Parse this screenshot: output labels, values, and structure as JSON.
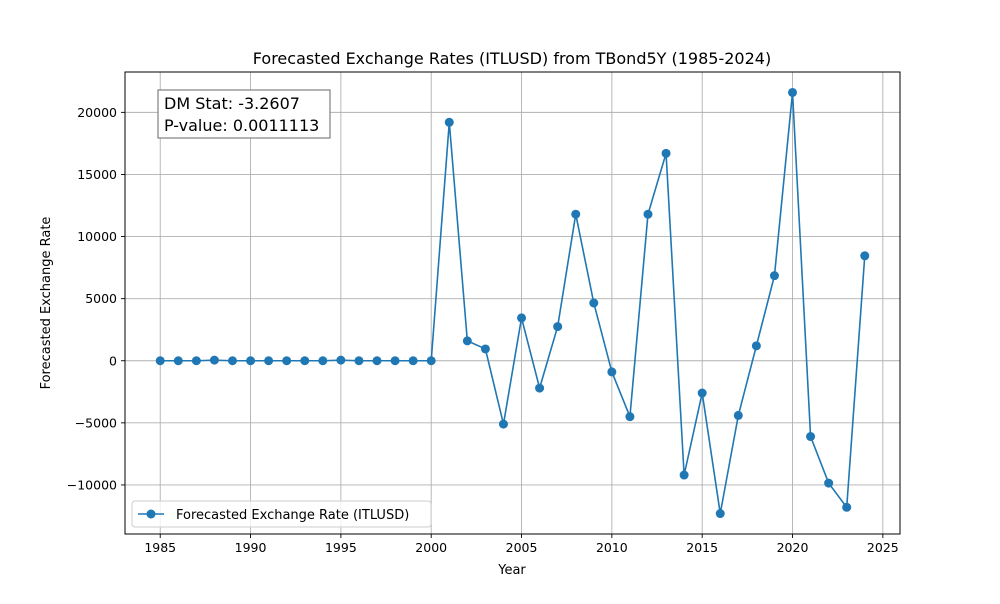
{
  "chart_data": {
    "type": "line",
    "title": "Forecasted Exchange Rates (ITLUSD) from TBond5Y (1985-2024)",
    "xlabel": "Year",
    "ylabel": "Forecasted Exchange Rate",
    "xlim": [
      1983.05,
      2025.95
    ],
    "ylim": [
      -13950,
      23250
    ],
    "x_ticks": [
      1985,
      1990,
      1995,
      2000,
      2005,
      2010,
      2015,
      2020,
      2025
    ],
    "y_ticks": [
      -10000,
      -5000,
      0,
      5000,
      10000,
      15000,
      20000
    ],
    "y_tick_labels": [
      "−10000",
      "−5000",
      "0",
      "5000",
      "10000",
      "15000",
      "20000"
    ],
    "grid": true,
    "legend_position": "lower-left",
    "annotation": [
      "DM Stat: -3.2607",
      "P-value: 0.0011113"
    ],
    "series": [
      {
        "name": "Forecasted Exchange Rate (ITLUSD)",
        "color": "#1f77b4",
        "marker": "circle",
        "x": [
          1985,
          1986,
          1987,
          1988,
          1989,
          1990,
          1991,
          1992,
          1993,
          1994,
          1995,
          1996,
          1997,
          1998,
          1999,
          2000,
          2001,
          2002,
          2003,
          2004,
          2005,
          2006,
          2007,
          2008,
          2009,
          2010,
          2011,
          2012,
          2013,
          2014,
          2015,
          2016,
          2017,
          2018,
          2019,
          2020,
          2021,
          2022,
          2023,
          2024
        ],
        "y": [
          0,
          0,
          0,
          50,
          0,
          0,
          0,
          0,
          0,
          0,
          50,
          0,
          0,
          0,
          0,
          0,
          19200,
          1600,
          950,
          -5100,
          3450,
          -2200,
          2750,
          11800,
          4650,
          -900,
          -4500,
          11800,
          16700,
          -9200,
          -2600,
          -12300,
          -4400,
          1200,
          6850,
          21600,
          -6100,
          -9850,
          -11800,
          8450
        ]
      }
    ]
  }
}
